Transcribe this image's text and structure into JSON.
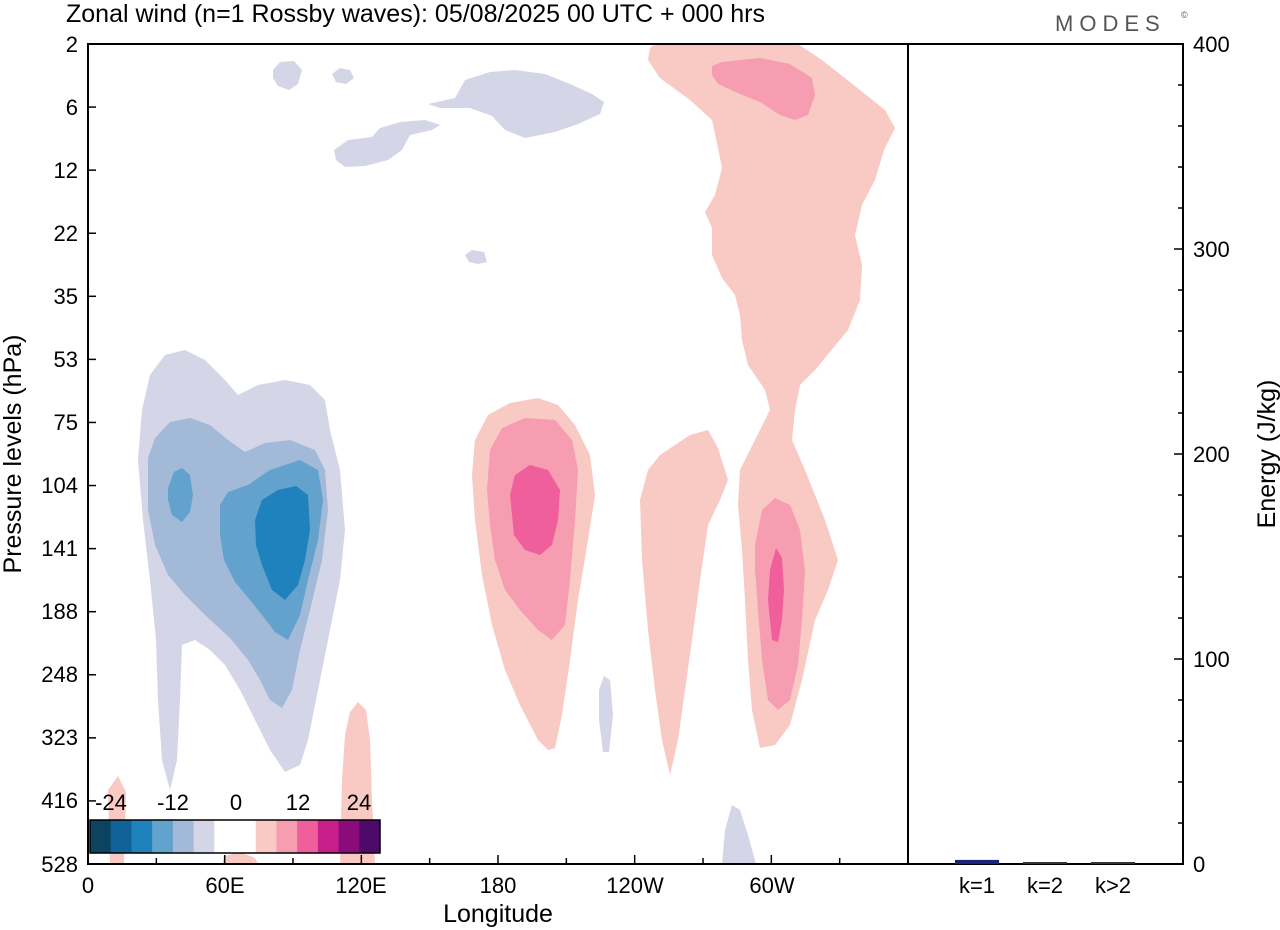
{
  "chart_data": {
    "type": "contour",
    "title": "Zonal wind (n=1 Rossby waves):  05/08/2025  00 UTC  + 000 hrs",
    "logo": "MODES",
    "logo_mark": "©",
    "xlabel": "Longitude",
    "ylabel": "Pressure levels (hPa)",
    "x_ticks": [
      "0",
      "60E",
      "120E",
      "180",
      "120W",
      "60W"
    ],
    "x_tick_lon": [
      0,
      60,
      120,
      180,
      240,
      300
    ],
    "xlim": [
      0,
      360
    ],
    "y_ticks": [
      "2",
      "6",
      "12",
      "22",
      "35",
      "53",
      "75",
      "104",
      "141",
      "188",
      "248",
      "323",
      "416",
      "528"
    ],
    "colorbar": {
      "labels": [
        "-24",
        "-12",
        "0",
        "12",
        "24"
      ],
      "colors": [
        "#0b4360",
        "#0f6396",
        "#1f82bd",
        "#62a2cd",
        "#a2b9d8",
        "#d4d6e7",
        "#ffffff",
        "#ffffff",
        "#f9c9c4",
        "#f69db1",
        "#ef5f9c",
        "#c71e8b",
        "#8a0c7c",
        "#4e0a6a"
      ]
    },
    "features": [
      {
        "name": "negative anomaly 40E-110E",
        "center_lon": 80,
        "center_hPa": 141,
        "min_value": -18
      },
      {
        "name": "positive anomaly 160E-200E",
        "center_lon": 190,
        "center_hPa": 120,
        "max_value": 15
      },
      {
        "name": "positive anomaly 60W",
        "center_lon": 300,
        "center_hPa": 160,
        "max_value": 18
      },
      {
        "name": "positive stratospheric plume",
        "center_lon": 300,
        "center_hPa": 6,
        "max_value": 12
      }
    ],
    "energy_panel": {
      "type": "bar",
      "ylabel": "Energy (J/kg)",
      "ylim": [
        0,
        400
      ],
      "y_ticks": [
        "0",
        "100",
        "200",
        "300",
        "400"
      ],
      "categories": [
        "k=1",
        "k=2",
        "k>2"
      ],
      "values": [
        2,
        0.5,
        0.8
      ],
      "bar_colors": [
        "#1a237e",
        "#333333",
        "#333333"
      ]
    }
  }
}
